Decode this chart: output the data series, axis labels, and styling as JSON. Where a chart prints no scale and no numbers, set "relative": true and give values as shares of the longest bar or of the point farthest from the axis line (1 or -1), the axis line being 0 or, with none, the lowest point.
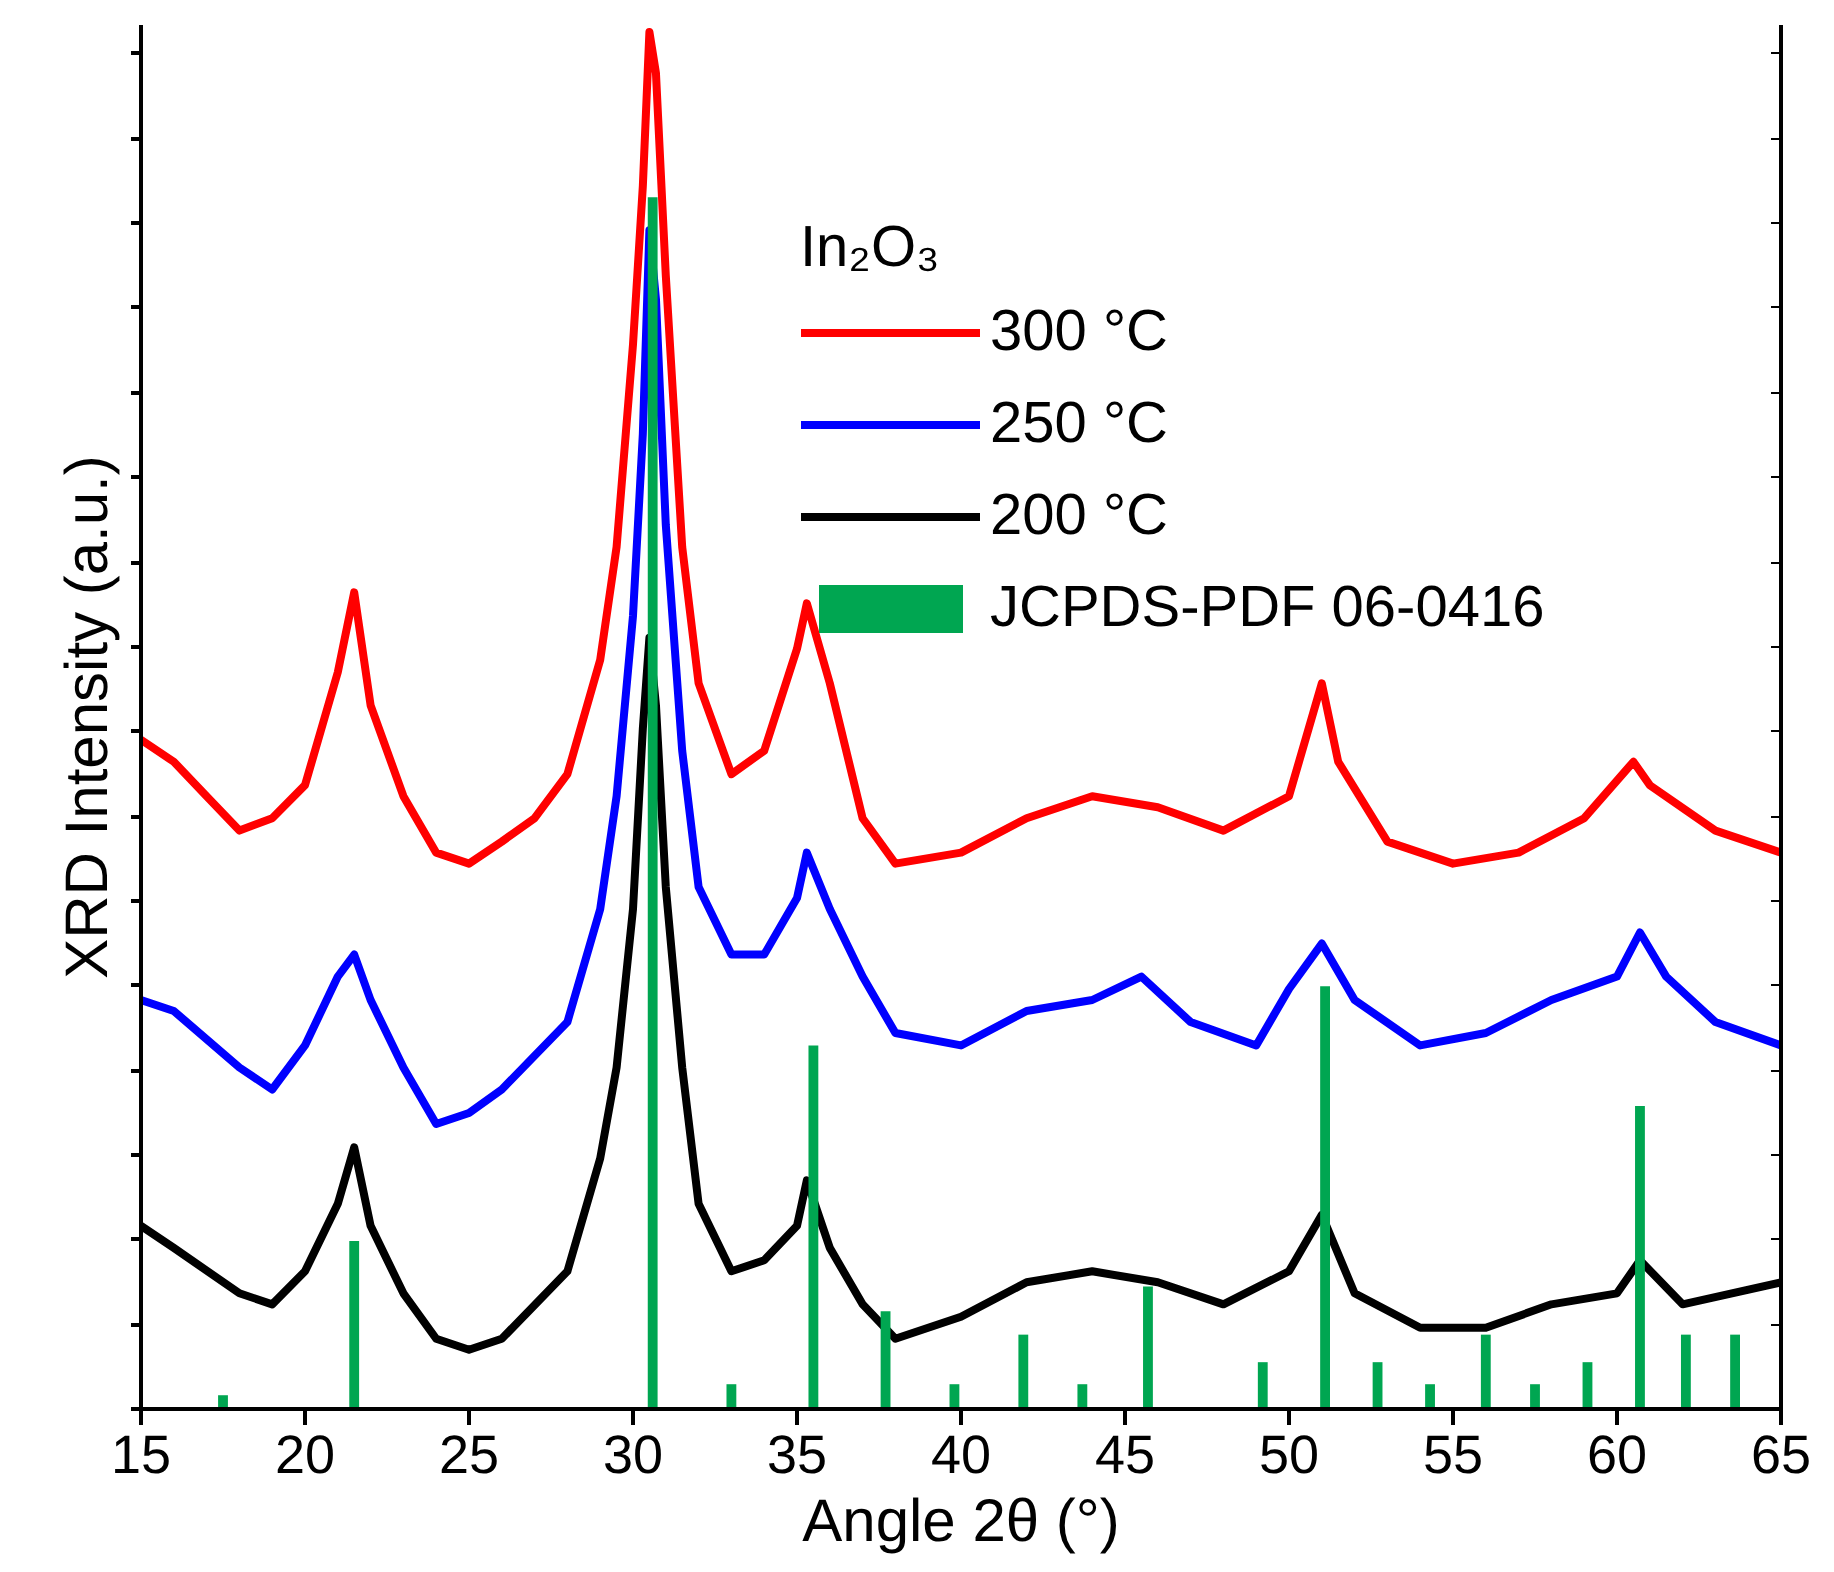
{
  "chart_data": {
    "type": "line",
    "relative": true,
    "xlabel": "Angle 2θ (°)",
    "ylabel": "XRD Intensity (a.u.)",
    "legend_title": "In₂O₃",
    "legend": "top right",
    "grid": false,
    "tick_labels": "x",
    "line_style": "solid",
    "marker": "none",
    "xlim": [
      15,
      65
    ],
    "xticks": [
      15,
      20,
      25,
      30,
      35,
      40,
      45,
      50,
      55,
      60,
      65
    ],
    "series": [
      {
        "name": "300 °C",
        "color": "#ff0000",
        "x": [
          15,
          16,
          17,
          18,
          19,
          20,
          21,
          21.5,
          22,
          23,
          24,
          25,
          26,
          27,
          28,
          29,
          29.5,
          30,
          30.3,
          30.5,
          30.7,
          31,
          31.5,
          32,
          33,
          34,
          35,
          35.3,
          36,
          37,
          38,
          40,
          42,
          44,
          46,
          48,
          50,
          51,
          51.5,
          53,
          55,
          57,
          59,
          60.5,
          61,
          63,
          65
        ],
        "values": [
          0.486,
          0.47,
          0.445,
          0.42,
          0.429,
          0.453,
          0.535,
          0.593,
          0.511,
          0.445,
          0.404,
          0.396,
          0.412,
          0.429,
          0.461,
          0.544,
          0.626,
          0.773,
          0.888,
          1.0,
          0.97,
          0.823,
          0.626,
          0.527,
          0.461,
          0.478,
          0.552,
          0.585,
          0.527,
          0.429,
          0.396,
          0.404,
          0.429,
          0.445,
          0.437,
          0.42,
          0.445,
          0.527,
          0.47,
          0.412,
          0.396,
          0.404,
          0.429,
          0.47,
          0.453,
          0.42,
          0.404
        ]
      },
      {
        "name": "250 °C",
        "color": "#0000ff",
        "x": [
          15,
          16,
          18,
          19,
          20,
          21,
          21.5,
          22,
          23,
          24,
          25,
          26,
          28,
          29,
          29.5,
          30,
          30.3,
          30.5,
          30.7,
          31,
          31.5,
          32,
          33,
          34,
          35,
          35.3,
          36,
          37,
          38,
          40,
          42,
          44,
          45.5,
          47,
          49,
          50,
          51,
          52,
          54,
          56,
          58,
          60,
          60.7,
          61.5,
          63,
          65
        ],
        "values": [
          0.297,
          0.289,
          0.248,
          0.232,
          0.264,
          0.314,
          0.33,
          0.297,
          0.248,
          0.207,
          0.215,
          0.232,
          0.281,
          0.363,
          0.445,
          0.576,
          0.708,
          0.856,
          0.806,
          0.642,
          0.478,
          0.379,
          0.33,
          0.33,
          0.371,
          0.404,
          0.363,
          0.314,
          0.273,
          0.264,
          0.289,
          0.297,
          0.314,
          0.281,
          0.264,
          0.305,
          0.338,
          0.297,
          0.264,
          0.273,
          0.297,
          0.314,
          0.346,
          0.314,
          0.281,
          0.264
        ]
      },
      {
        "name": "200 °C",
        "color": "#000000",
        "x": [
          15,
          16,
          18,
          19,
          20,
          21,
          21.5,
          22,
          23,
          24,
          25,
          26,
          28,
          29,
          29.5,
          30,
          30.3,
          30.5,
          30.7,
          31,
          31.5,
          32,
          33,
          34,
          35,
          35.3,
          36,
          37,
          38,
          40,
          42,
          44,
          46,
          48,
          50,
          51,
          52,
          54,
          56,
          58,
          60,
          60.7,
          62,
          65
        ],
        "values": [
          0.133,
          0.117,
          0.084,
          0.076,
          0.1,
          0.149,
          0.19,
          0.133,
          0.084,
          0.051,
          0.043,
          0.051,
          0.1,
          0.182,
          0.248,
          0.363,
          0.494,
          0.56,
          0.511,
          0.379,
          0.248,
          0.149,
          0.1,
          0.108,
          0.133,
          0.166,
          0.117,
          0.076,
          0.051,
          0.067,
          0.092,
          0.1,
          0.092,
          0.076,
          0.1,
          0.141,
          0.084,
          0.059,
          0.059,
          0.076,
          0.084,
          0.108,
          0.076,
          0.092
        ]
      },
      {
        "name": "JCPDS-PDF 06-0416",
        "type": "bar",
        "color": "#00a651",
        "x": [
          17.5,
          21.5,
          30.6,
          33,
          35.5,
          37.7,
          39.8,
          41.9,
          43.7,
          45.7,
          49.2,
          51.1,
          52.7,
          54.3,
          56,
          57.5,
          59.1,
          60.7,
          62.1,
          63.6
        ],
        "values": [
          0.01,
          0.122,
          0.88,
          0.018,
          0.264,
          0.071,
          0.018,
          0.054,
          0.018,
          0.089,
          0.034,
          0.307,
          0.034,
          0.018,
          0.054,
          0.018,
          0.034,
          0.22,
          0.054,
          0.054
        ]
      }
    ]
  }
}
